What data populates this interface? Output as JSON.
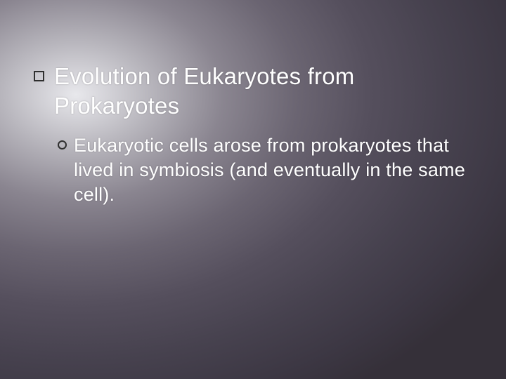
{
  "slide": {
    "background": {
      "type": "radial-gradient",
      "center": "15% 25%",
      "stops": [
        "#e8e8ec",
        "#b8b6bd",
        "#8a8590",
        "#6b6572",
        "#554f5d",
        "#47424f",
        "#3c3743",
        "#353039"
      ]
    },
    "text_color": "#ffffff",
    "bullet_border_color": "#2f2f2f",
    "font_family": "Arial",
    "points": [
      {
        "level": 1,
        "bullet_style": "hollow-square",
        "font_size_pt": 25,
        "text": "Evolution of Eukaryotes from Prokaryotes",
        "children": [
          {
            "level": 2,
            "bullet_style": "hollow-circle",
            "font_size_pt": 20,
            "text": "Eukaryotic cells arose from prokaryotes that lived in symbiosis (and eventually in the same cell)."
          }
        ]
      }
    ]
  }
}
